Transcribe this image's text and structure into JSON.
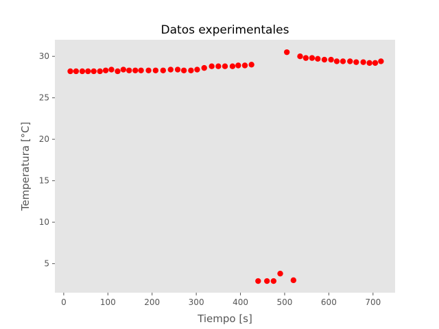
{
  "chart_data": {
    "type": "scatter",
    "title": "Datos experimentales",
    "xlabel": "Tiempo [s]",
    "ylabel": "Temperatura [°C]",
    "xlim": [
      -20,
      750
    ],
    "ylim": [
      1.5,
      32
    ],
    "xticks": [
      0,
      100,
      200,
      300,
      400,
      500,
      600,
      700
    ],
    "yticks": [
      5,
      10,
      15,
      20,
      25,
      30
    ],
    "grid": false,
    "colors": {
      "background": "#e5e5e5",
      "marker": "#ff0000",
      "tick": "#555555"
    },
    "series": [
      {
        "x": [
          15,
          28,
          42,
          55,
          68,
          82,
          95,
          108,
          122,
          135,
          148,
          162,
          175,
          192,
          208,
          225,
          242,
          258,
          272,
          288,
          302,
          318,
          335,
          350,
          365,
          382,
          395,
          410,
          425,
          440,
          460,
          475,
          490,
          505,
          520,
          535,
          548,
          562,
          575,
          590,
          605,
          618,
          632,
          648,
          662,
          678,
          692,
          705,
          718
        ],
        "y": [
          28.2,
          28.2,
          28.2,
          28.2,
          28.2,
          28.2,
          28.3,
          28.4,
          28.2,
          28.4,
          28.3,
          28.3,
          28.3,
          28.3,
          28.3,
          28.3,
          28.4,
          28.4,
          28.3,
          28.3,
          28.4,
          28.6,
          28.8,
          28.8,
          28.8,
          28.8,
          28.9,
          28.9,
          29.0,
          2.9,
          2.9,
          2.9,
          3.8,
          30.5,
          3.0,
          30.0,
          29.8,
          29.8,
          29.7,
          29.6,
          29.6,
          29.4,
          29.4,
          29.4,
          29.3,
          29.3,
          29.2,
          29.2,
          29.4
        ]
      }
    ]
  }
}
